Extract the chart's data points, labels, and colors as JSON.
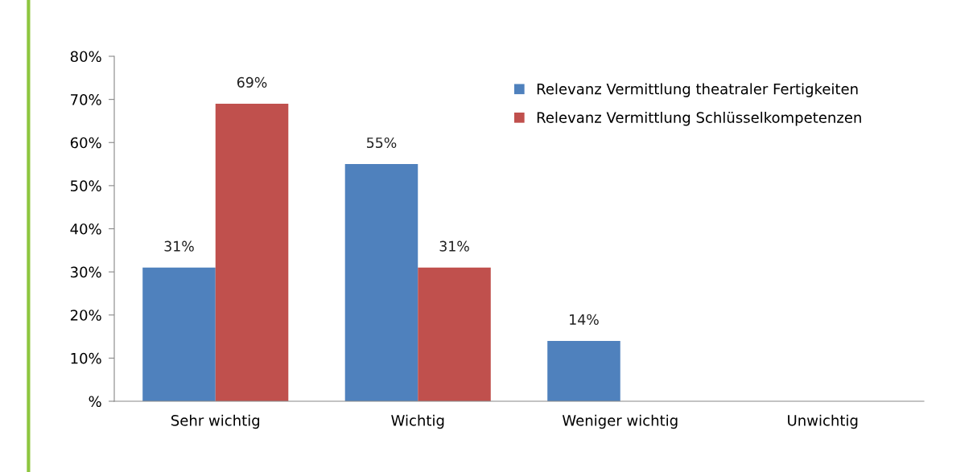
{
  "chart_data": {
    "type": "bar",
    "categories": [
      "Sehr wichtig",
      "Wichtig",
      "Weniger wichtig",
      "Unwichtig"
    ],
    "series": [
      {
        "name": "Relevanz Vermittlung theatraler Fertigkeiten",
        "color": "#4f81bd",
        "values": [
          31,
          55,
          14,
          0
        ],
        "value_labels": [
          "31%",
          "55%",
          "14%",
          null
        ]
      },
      {
        "name": "Relevanz Vermittlung Schlüsselkompetenzen",
        "color": "#c0504d",
        "values": [
          69,
          31,
          0,
          0
        ],
        "value_labels": [
          "69%",
          "31%",
          null,
          null
        ]
      }
    ],
    "ylim": [
      0,
      80
    ],
    "yticks": [
      {
        "value": 0,
        "label": "%"
      },
      {
        "value": 10,
        "label": "10%"
      },
      {
        "value": 20,
        "label": "20%"
      },
      {
        "value": 30,
        "label": "30%"
      },
      {
        "value": 40,
        "label": "40%"
      },
      {
        "value": 50,
        "label": "50%"
      },
      {
        "value": 60,
        "label": "60%"
      },
      {
        "value": 70,
        "label": "70%"
      },
      {
        "value": 80,
        "label": "80%"
      }
    ],
    "grid": false,
    "legend": "top right"
  }
}
